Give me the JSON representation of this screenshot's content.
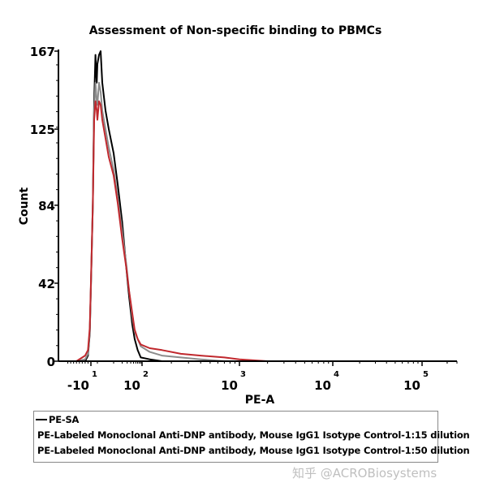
{
  "chart_data": {
    "type": "line",
    "title": "Assessment of Non-specific binding to PBMCs",
    "xlabel": "PE-A",
    "ylabel": "Count",
    "ylim": [
      0,
      167
    ],
    "yticks": [
      "0",
      "42",
      "84",
      "125",
      "167"
    ],
    "ytick_values": [
      0,
      42,
      84,
      125,
      167
    ],
    "xticks": [
      {
        "base": "-10",
        "exp": "1",
        "value": -10
      },
      {
        "base": "10",
        "exp": "2",
        "value": 100
      },
      {
        "base": "10",
        "exp": "3",
        "value": 1000
      },
      {
        "base": "10",
        "exp": "4",
        "value": 10000
      },
      {
        "base": "10",
        "exp": "5",
        "value": 100000
      }
    ],
    "xscale": "logicle",
    "legend_position": "bottom",
    "series": [
      {
        "name": "PE-SA",
        "color": "#000000",
        "x": [
          -60,
          -30,
          -20,
          -14,
          -10,
          -7,
          -5,
          -3,
          -1,
          0,
          1,
          2,
          3,
          5,
          7,
          10,
          14,
          20,
          28,
          35,
          45,
          55,
          70,
          90,
          120,
          160,
          250
        ],
        "y": [
          0,
          0,
          3,
          15,
          40,
          85,
          140,
          165,
          150,
          160,
          165,
          167,
          150,
          135,
          125,
          112,
          95,
          75,
          50,
          35,
          20,
          12,
          6,
          2,
          1,
          0,
          0
        ]
      },
      {
        "name": "PE-Labeled Monoclonal Anti-DNP antibody, Mouse IgG1 Isotype Control-1:15 dilution",
        "color": "#c0282d",
        "x": [
          -60,
          -30,
          -20,
          -14,
          -10,
          -7,
          -5,
          -3,
          -1,
          0,
          1,
          2,
          3,
          5,
          7,
          10,
          14,
          20,
          28,
          35,
          45,
          55,
          70,
          90,
          120,
          160,
          250,
          400,
          700,
          1000,
          2000
        ],
        "y": [
          0,
          3,
          6,
          18,
          42,
          85,
          130,
          140,
          135,
          130,
          140,
          138,
          130,
          120,
          110,
          100,
          85,
          66,
          50,
          38,
          26,
          17,
          12,
          9,
          7,
          6,
          4,
          3,
          2,
          1,
          0
        ]
      },
      {
        "name": "PE-Labeled Monoclonal Anti-DNP antibody, Mouse IgG1 Isotype Control-1:50 dilution",
        "color": "#8c8c8c",
        "x": [
          -60,
          -30,
          -20,
          -14,
          -10,
          -7,
          -5,
          -3,
          -1,
          0,
          1,
          2,
          3,
          5,
          7,
          10,
          14,
          20,
          28,
          35,
          45,
          55,
          70,
          90,
          120,
          160,
          250,
          400,
          700
        ],
        "y": [
          0,
          1,
          4,
          16,
          40,
          86,
          135,
          150,
          140,
          138,
          150,
          145,
          135,
          125,
          115,
          103,
          88,
          70,
          52,
          38,
          24,
          16,
          12,
          8,
          5,
          3,
          2,
          1,
          0
        ]
      }
    ]
  },
  "legend": {
    "items": [
      "PE-SA",
      "PE-Labeled Monoclonal Anti-DNP antibody, Mouse IgG1 Isotype Control-1:15 dilution",
      "PE-Labeled Monoclonal Anti-DNP antibody, Mouse IgG1 Isotype Control-1:50 dilution"
    ]
  },
  "watermark": "知乎 @ACROBiosystems"
}
